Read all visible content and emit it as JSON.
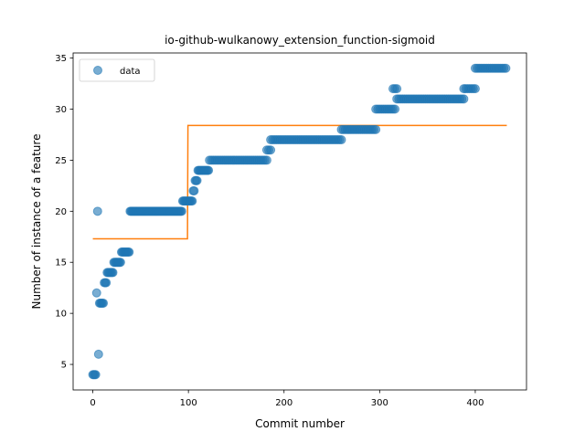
{
  "chart_data": {
    "type": "scatter",
    "title": "io-github-wulkanowy_extension_function-sigmoid",
    "xlabel": "Commit number",
    "ylabel": "Number of instance of a feature",
    "xlim": [
      -20.6,
      453.6
    ],
    "ylim": [
      2.5,
      35.5
    ],
    "xticks": [
      0,
      100,
      200,
      300,
      400
    ],
    "yticks": [
      5,
      10,
      15,
      20,
      25,
      30,
      35
    ],
    "legend": {
      "placement": "top-left",
      "entries": [
        "data"
      ]
    },
    "colors": {
      "points": "#1f77b4",
      "fit": "#ff7f0e"
    },
    "series": [
      {
        "name": "data",
        "kind": "scatter",
        "points": [
          [
            0,
            4
          ],
          [
            1,
            4
          ],
          [
            2,
            4
          ],
          [
            3,
            4
          ],
          [
            4,
            12
          ],
          [
            5,
            20
          ],
          [
            6,
            6
          ],
          [
            7,
            11
          ],
          [
            8,
            11
          ],
          [
            9,
            11
          ],
          [
            10,
            11
          ],
          [
            11,
            11
          ],
          [
            12,
            13
          ],
          [
            13,
            13
          ],
          [
            14,
            13
          ],
          [
            15,
            14
          ],
          [
            16,
            14
          ],
          [
            17,
            14
          ],
          [
            18,
            14
          ],
          [
            19,
            14
          ],
          [
            20,
            14
          ],
          [
            21,
            14
          ],
          [
            22,
            15
          ],
          [
            23,
            15
          ],
          [
            24,
            15
          ],
          [
            25,
            15
          ],
          [
            26,
            15
          ],
          [
            27,
            15
          ],
          [
            28,
            15
          ],
          [
            29,
            15
          ],
          [
            30,
            16
          ],
          [
            31,
            16
          ],
          [
            32,
            16
          ],
          [
            33,
            16
          ],
          [
            34,
            16
          ],
          [
            35,
            16
          ],
          [
            36,
            16
          ],
          [
            37,
            16
          ],
          [
            38,
            16
          ],
          [
            39,
            20
          ],
          [
            40,
            20
          ],
          [
            41,
            20
          ],
          [
            42,
            20
          ],
          [
            43,
            20
          ],
          [
            44,
            20
          ],
          [
            45,
            20
          ],
          [
            46,
            20
          ],
          [
            47,
            20
          ],
          [
            48,
            20
          ],
          [
            49,
            20
          ],
          [
            50,
            20
          ],
          [
            51,
            20
          ],
          [
            52,
            20
          ],
          [
            53,
            20
          ],
          [
            54,
            20
          ],
          [
            55,
            20
          ],
          [
            56,
            20
          ],
          [
            57,
            20
          ],
          [
            58,
            20
          ],
          [
            59,
            20
          ],
          [
            60,
            20
          ],
          [
            61,
            20
          ],
          [
            62,
            20
          ],
          [
            63,
            20
          ],
          [
            64,
            20
          ],
          [
            65,
            20
          ],
          [
            66,
            20
          ],
          [
            67,
            20
          ],
          [
            68,
            20
          ],
          [
            69,
            20
          ],
          [
            70,
            20
          ],
          [
            71,
            20
          ],
          [
            72,
            20
          ],
          [
            73,
            20
          ],
          [
            74,
            20
          ],
          [
            75,
            20
          ],
          [
            76,
            20
          ],
          [
            77,
            20
          ],
          [
            78,
            20
          ],
          [
            79,
            20
          ],
          [
            80,
            20
          ],
          [
            81,
            20
          ],
          [
            82,
            20
          ],
          [
            83,
            20
          ],
          [
            84,
            20
          ],
          [
            85,
            20
          ],
          [
            86,
            20
          ],
          [
            87,
            20
          ],
          [
            88,
            20
          ],
          [
            89,
            20
          ],
          [
            90,
            20
          ],
          [
            91,
            20
          ],
          [
            92,
            20
          ],
          [
            93,
            20
          ],
          [
            94,
            21
          ],
          [
            95,
            21
          ],
          [
            96,
            21
          ],
          [
            97,
            21
          ],
          [
            98,
            21
          ],
          [
            99,
            21
          ],
          [
            100,
            21
          ],
          [
            101,
            21
          ],
          [
            102,
            21
          ],
          [
            103,
            21
          ],
          [
            104,
            21
          ],
          [
            105,
            22
          ],
          [
            106,
            22
          ],
          [
            107,
            23
          ],
          [
            108,
            23
          ],
          [
            109,
            23
          ],
          [
            110,
            24
          ],
          [
            111,
            24
          ],
          [
            112,
            24
          ],
          [
            113,
            24
          ],
          [
            114,
            24
          ],
          [
            115,
            24
          ],
          [
            116,
            24
          ],
          [
            117,
            24
          ],
          [
            118,
            24
          ],
          [
            119,
            24
          ],
          [
            120,
            24
          ],
          [
            121,
            24
          ],
          [
            122,
            25
          ],
          [
            124,
            25
          ],
          [
            126,
            25
          ],
          [
            128,
            25
          ],
          [
            130,
            25
          ],
          [
            132,
            25
          ],
          [
            134,
            25
          ],
          [
            136,
            25
          ],
          [
            138,
            25
          ],
          [
            140,
            25
          ],
          [
            142,
            25
          ],
          [
            144,
            25
          ],
          [
            146,
            25
          ],
          [
            148,
            25
          ],
          [
            150,
            25
          ],
          [
            152,
            25
          ],
          [
            154,
            25
          ],
          [
            156,
            25
          ],
          [
            158,
            25
          ],
          [
            160,
            25
          ],
          [
            162,
            25
          ],
          [
            164,
            25
          ],
          [
            166,
            25
          ],
          [
            168,
            25
          ],
          [
            170,
            25
          ],
          [
            172,
            25
          ],
          [
            174,
            25
          ],
          [
            176,
            25
          ],
          [
            178,
            25
          ],
          [
            180,
            25
          ],
          [
            182,
            25
          ],
          [
            182,
            26
          ],
          [
            184,
            26
          ],
          [
            186,
            26
          ],
          [
            186,
            27
          ],
          [
            188,
            27
          ],
          [
            190,
            27
          ],
          [
            192,
            27
          ],
          [
            194,
            27
          ],
          [
            196,
            27
          ],
          [
            198,
            27
          ],
          [
            200,
            27
          ],
          [
            202,
            27
          ],
          [
            204,
            27
          ],
          [
            206,
            27
          ],
          [
            208,
            27
          ],
          [
            210,
            27
          ],
          [
            212,
            27
          ],
          [
            214,
            27
          ],
          [
            216,
            27
          ],
          [
            218,
            27
          ],
          [
            220,
            27
          ],
          [
            222,
            27
          ],
          [
            224,
            27
          ],
          [
            226,
            27
          ],
          [
            228,
            27
          ],
          [
            230,
            27
          ],
          [
            232,
            27
          ],
          [
            234,
            27
          ],
          [
            236,
            27
          ],
          [
            238,
            27
          ],
          [
            240,
            27
          ],
          [
            242,
            27
          ],
          [
            244,
            27
          ],
          [
            246,
            27
          ],
          [
            248,
            27
          ],
          [
            250,
            27
          ],
          [
            252,
            27
          ],
          [
            254,
            27
          ],
          [
            256,
            27
          ],
          [
            258,
            27
          ],
          [
            260,
            27
          ],
          [
            260,
            28
          ],
          [
            262,
            28
          ],
          [
            264,
            28
          ],
          [
            266,
            28
          ],
          [
            268,
            28
          ],
          [
            270,
            28
          ],
          [
            272,
            28
          ],
          [
            274,
            28
          ],
          [
            276,
            28
          ],
          [
            278,
            28
          ],
          [
            280,
            28
          ],
          [
            282,
            28
          ],
          [
            284,
            28
          ],
          [
            286,
            28
          ],
          [
            288,
            28
          ],
          [
            290,
            28
          ],
          [
            292,
            28
          ],
          [
            294,
            28
          ],
          [
            296,
            28
          ],
          [
            296,
            30
          ],
          [
            298,
            30
          ],
          [
            300,
            30
          ],
          [
            302,
            30
          ],
          [
            304,
            30
          ],
          [
            306,
            30
          ],
          [
            308,
            30
          ],
          [
            310,
            30
          ],
          [
            312,
            30
          ],
          [
            314,
            30
          ],
          [
            316,
            30
          ],
          [
            314,
            32
          ],
          [
            316,
            32
          ],
          [
            318,
            32
          ],
          [
            318,
            31
          ],
          [
            320,
            31
          ],
          [
            322,
            31
          ],
          [
            324,
            31
          ],
          [
            326,
            31
          ],
          [
            328,
            31
          ],
          [
            330,
            31
          ],
          [
            332,
            31
          ],
          [
            334,
            31
          ],
          [
            336,
            31
          ],
          [
            338,
            31
          ],
          [
            340,
            31
          ],
          [
            342,
            31
          ],
          [
            344,
            31
          ],
          [
            346,
            31
          ],
          [
            348,
            31
          ],
          [
            350,
            31
          ],
          [
            352,
            31
          ],
          [
            354,
            31
          ],
          [
            356,
            31
          ],
          [
            358,
            31
          ],
          [
            360,
            31
          ],
          [
            362,
            31
          ],
          [
            364,
            31
          ],
          [
            366,
            31
          ],
          [
            368,
            31
          ],
          [
            370,
            31
          ],
          [
            372,
            31
          ],
          [
            374,
            31
          ],
          [
            376,
            31
          ],
          [
            378,
            31
          ],
          [
            380,
            31
          ],
          [
            382,
            31
          ],
          [
            384,
            31
          ],
          [
            386,
            31
          ],
          [
            388,
            31
          ],
          [
            388,
            32
          ],
          [
            390,
            32
          ],
          [
            392,
            32
          ],
          [
            394,
            32
          ],
          [
            396,
            32
          ],
          [
            398,
            32
          ],
          [
            400,
            32
          ],
          [
            400,
            34
          ],
          [
            402,
            34
          ],
          [
            404,
            34
          ],
          [
            406,
            34
          ],
          [
            408,
            34
          ],
          [
            410,
            34
          ],
          [
            412,
            34
          ],
          [
            414,
            34
          ],
          [
            416,
            34
          ],
          [
            418,
            34
          ],
          [
            420,
            34
          ],
          [
            422,
            34
          ],
          [
            424,
            34
          ],
          [
            426,
            34
          ],
          [
            428,
            34
          ],
          [
            430,
            34
          ],
          [
            432,
            34
          ]
        ]
      },
      {
        "name": "",
        "kind": "line",
        "points": [
          [
            0,
            17.3
          ],
          [
            98,
            17.3
          ],
          [
            99,
            17.3
          ],
          [
            99.5,
            28.4
          ],
          [
            100,
            28.4
          ],
          [
            433,
            28.4
          ]
        ]
      }
    ]
  }
}
